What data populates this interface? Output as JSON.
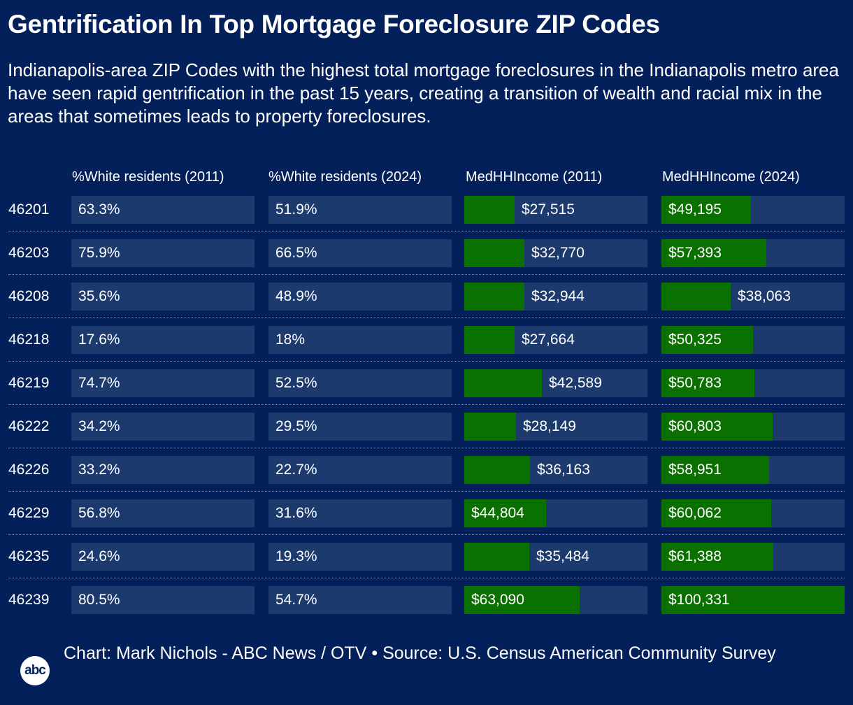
{
  "title": "Gentrification In Top Mortgage Foreclosure ZIP Codes",
  "subtitle": "Indianapolis-area ZIP Codes with the highest total mortgage foreclosures in the Indianapolis metro area have seen rapid gentrification in the past 15 years, creating a transition of wealth and racial mix in the areas that sometimes leads to property foreclosures.",
  "footer": "Chart: Mark Nichols - ABC News / OTV • Source: U.S. Census American Community Survey",
  "logo_text": "abc",
  "colors": {
    "background": "#04205a",
    "cell": "#1c3a6e",
    "bar": "#0a7100",
    "text": "#ffffff"
  },
  "chart_data": {
    "type": "table",
    "columns": [
      "%White residents (2011)",
      "%White residents (2024)",
      "MedHHIncome (2011)",
      "MedHHIncome (2024)"
    ],
    "bar_columns": [
      2,
      3
    ],
    "bar_max": 100331,
    "rows": [
      {
        "zip": "46201",
        "values": [
          63.3,
          51.9,
          27515,
          49195
        ],
        "labels": [
          "63.3%",
          "51.9%",
          "$27,515",
          "$49,195"
        ]
      },
      {
        "zip": "46203",
        "values": [
          75.9,
          66.5,
          32770,
          57393
        ],
        "labels": [
          "75.9%",
          "66.5%",
          "$32,770",
          "$57,393"
        ]
      },
      {
        "zip": "46208",
        "values": [
          35.6,
          48.9,
          32944,
          38063
        ],
        "labels": [
          "35.6%",
          "48.9%",
          "$32,944",
          "$38,063"
        ]
      },
      {
        "zip": "46218",
        "values": [
          17.6,
          18,
          27664,
          50325
        ],
        "labels": [
          "17.6%",
          "18%",
          "$27,664",
          "$50,325"
        ]
      },
      {
        "zip": "46219",
        "values": [
          74.7,
          52.5,
          42589,
          50783
        ],
        "labels": [
          "74.7%",
          "52.5%",
          "$42,589",
          "$50,783"
        ]
      },
      {
        "zip": "46222",
        "values": [
          34.2,
          29.5,
          28149,
          60803
        ],
        "labels": [
          "34.2%",
          "29.5%",
          "$28,149",
          "$60,803"
        ]
      },
      {
        "zip": "46226",
        "values": [
          33.2,
          22.7,
          36163,
          58951
        ],
        "labels": [
          "33.2%",
          "22.7%",
          "$36,163",
          "$58,951"
        ]
      },
      {
        "zip": "46229",
        "values": [
          56.8,
          31.6,
          44804,
          60062
        ],
        "labels": [
          "56.8%",
          "31.6%",
          "$44,804",
          "$60,062"
        ]
      },
      {
        "zip": "46235",
        "values": [
          24.6,
          19.3,
          35484,
          61388
        ],
        "labels": [
          "24.6%",
          "19.3%",
          "$35,484",
          "$61,388"
        ]
      },
      {
        "zip": "46239",
        "values": [
          80.5,
          54.7,
          63090,
          100331
        ],
        "labels": [
          "80.5%",
          "54.7%",
          "$63,090",
          "$100,331"
        ]
      }
    ]
  }
}
